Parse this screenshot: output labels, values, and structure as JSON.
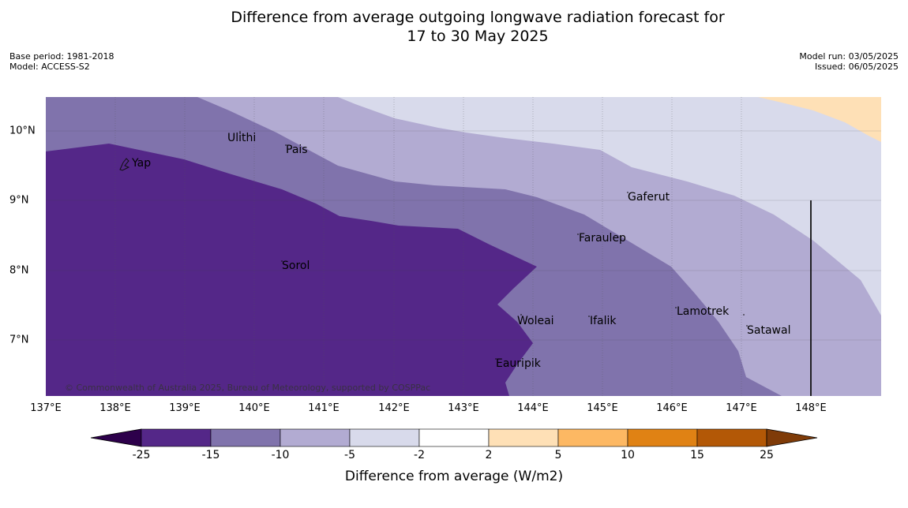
{
  "title": {
    "line1": "Difference from average outgoing longwave radiation forecast for",
    "line2": "17 to 30 May 2025"
  },
  "meta": {
    "base_period": "Base period: 1981-2018",
    "model": "Model: ACCESS-S2",
    "model_run": "Model run: 03/05/2025",
    "issued": "Issued: 06/05/2025"
  },
  "longitude_labels": [
    "137°E",
    "138°E",
    "139°E",
    "140°E",
    "141°E",
    "142°E",
    "143°E",
    "144°E",
    "145°E",
    "146°E",
    "147°E",
    "148°E"
  ],
  "latitude_labels": [
    "10°N",
    "9°N",
    "8°N",
    "7°N"
  ],
  "places": [
    {
      "name": "Yap"
    },
    {
      "name": "Ulithi"
    },
    {
      "name": "Pais"
    },
    {
      "name": "Gaferut"
    },
    {
      "name": "Faraulep"
    },
    {
      "name": "Sorol"
    },
    {
      "name": "Lamotrek"
    },
    {
      "name": "Woleai"
    },
    {
      "name": "Ifalik"
    },
    {
      "name": "Satawal"
    },
    {
      "name": "Eauripik"
    }
  ],
  "copyright": "© Commonwealth of Australia 2025, Bureau of Meteorology, supported by COSPPac",
  "colorbar": {
    "ticks": [
      "-25",
      "-15",
      "-10",
      "-5",
      "-2",
      "2",
      "5",
      "10",
      "15",
      "25"
    ],
    "label": "Difference from average (W/m2)",
    "colors": [
      "#2d004b",
      "#542788",
      "#8073ac",
      "#b2abd2",
      "#d8daeb",
      "#ffffff",
      "#fee0b6",
      "#fdb863",
      "#e08214",
      "#b35806",
      "#7f3b08"
    ]
  }
}
